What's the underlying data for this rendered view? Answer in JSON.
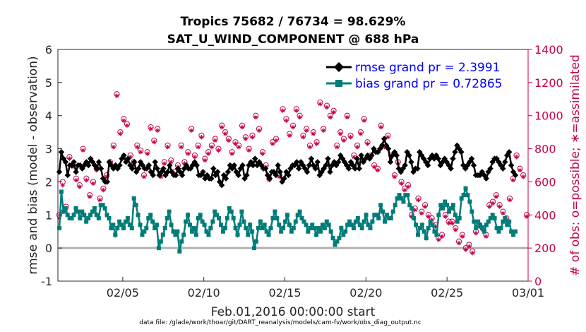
{
  "chart_data": {
    "type": "line",
    "title": "Tropics 75682 / 76734 = 98.629%",
    "subtitle": "SAT_U_WIND_COMPONENT @ 688 hPa",
    "xlabel": "Feb.01,2016 00:00:00 start",
    "ylabel": "rmse and bias (model - observation)",
    "ylabel_right": "# of obs: o=possible; ∗=assimilated",
    "footnote": "data file: /glade/work/thoar/git/DART_reanalysis/models/cam-fv/work/obs_diag_output.nc",
    "x_ticks": [
      "02/05",
      "02/10",
      "02/15",
      "02/20",
      "02/25",
      "03/01"
    ],
    "y_ticks": [
      "-1",
      "0",
      "1",
      "2",
      "3",
      "4",
      "5",
      "6"
    ],
    "y2_ticks": [
      "0",
      "200",
      "400",
      "600",
      "800",
      "1000",
      "1200",
      "1400"
    ],
    "ylim": [
      -1,
      6
    ],
    "y2lim": [
      0,
      1400
    ],
    "xlim": [
      "02/01",
      "03/01"
    ],
    "grid": false,
    "legend_position": "top-right",
    "series": [
      {
        "name": "rmse grand pr = 2.3991",
        "color": "#000000",
        "marker": "diamond",
        "values": [
          2.3,
          2.9,
          2.7,
          2.6,
          2.2,
          2.5,
          2.5,
          2.6,
          2.3,
          2.5,
          2.5,
          2.4,
          2.5,
          2.6,
          2.5,
          2.7,
          2.6,
          2.5,
          2.4,
          2.6,
          2.4,
          2.1,
          2.0,
          2.0,
          2.6,
          2.5,
          2.4,
          2.5,
          2.4,
          2.5,
          2.7,
          2.8,
          2.6,
          2.7,
          2.5,
          2.4,
          2.6,
          2.3,
          2.4,
          2.6,
          2.5,
          2.4,
          2.4,
          2.5,
          2.3,
          2.2,
          2.6,
          2.4,
          2.2,
          2.3,
          2.4,
          2.2,
          2.3,
          2.5,
          2.3,
          2.2,
          2.2,
          2.4,
          2.3,
          2.2,
          2.4,
          2.5,
          2.4,
          2.4,
          2.5,
          2.6,
          2.5,
          2.2,
          2.2,
          2.3,
          2.1,
          2.2,
          2.1,
          2.1,
          2.4,
          2.2,
          2.3,
          2.0,
          1.9,
          2.2,
          2.1,
          2.3,
          2.5,
          2.4,
          2.5,
          2.3,
          2.2,
          2.4,
          2.5,
          2.1,
          2.2,
          2.5,
          2.6,
          2.5,
          2.7,
          2.5,
          2.6,
          2.5,
          2.4,
          2.4,
          2.2,
          2.1,
          2.3,
          2.3,
          2.2,
          2.5,
          2.3,
          2.0,
          2.1,
          2.3,
          2.2,
          2.4,
          2.5,
          2.5,
          2.6,
          2.4,
          2.6,
          2.5,
          2.4,
          2.3,
          2.5,
          2.7,
          2.5,
          2.4,
          2.6,
          2.2,
          2.3,
          2.4,
          2.5,
          2.7,
          2.3,
          2.5,
          2.6,
          2.5,
          2.6,
          2.8,
          2.7,
          2.6,
          2.5,
          2.4,
          2.6,
          2.5,
          2.4,
          2.7,
          2.4,
          2.8,
          2.6,
          2.7,
          2.8,
          2.7,
          2.8,
          3.0,
          2.9,
          2.9,
          3.0,
          3.1,
          3.3,
          3.1,
          3.0,
          2.6,
          2.8,
          2.9,
          2.8,
          2.4,
          2.3,
          2.4,
          2.5,
          2.9,
          2.8,
          2.6,
          2.3,
          2.4,
          2.4,
          2.9,
          2.8,
          2.7,
          2.6,
          2.5,
          2.7,
          2.8,
          2.7,
          2.8,
          2.7,
          2.5,
          2.6,
          2.7,
          2.6,
          2.5,
          2.4,
          2.7,
          2.9,
          3.1,
          3.0,
          2.9,
          2.5,
          2.4,
          2.5,
          2.6,
          2.7,
          2.5,
          2.2,
          2.2,
          2.2,
          2.3,
          2.2,
          2.1,
          2.3,
          2.4,
          2.6,
          2.7,
          2.7,
          2.6,
          2.5,
          2.4,
          2.6,
          2.8,
          2.9,
          2.5,
          2.3,
          2.2
        ]
      },
      {
        "name": "bias grand pr = 0.72865",
        "color": "#007c78",
        "marker": "square",
        "values": [
          0.6,
          1.7,
          1.1,
          1.2,
          1.0,
          0.9,
          0.9,
          1.0,
          1.2,
          1.1,
          0.9,
          1.1,
          1.0,
          0.8,
          0.9,
          1.0,
          1.1,
          1.2,
          1.0,
          0.9,
          1.3,
          1.3,
          1.2,
          1.0,
          0.9,
          0.6,
          0.7,
          0.4,
          0.6,
          0.8,
          0.7,
          0.6,
          0.8,
          0.9,
          0.7,
          0.6,
          1.5,
          1.3,
          1.0,
          0.7,
          0.4,
          0.5,
          0.6,
          0.9,
          1.0,
          0.8,
          0.6,
          0.7,
          0.0,
          0.2,
          0.4,
          0.6,
          0.9,
          1.1,
          0.7,
          0.5,
          0.4,
          0.5,
          -0.1,
          0.2,
          0.4,
          0.8,
          1.0,
          0.7,
          0.5,
          0.6,
          0.4,
          0.9,
          1.0,
          0.8,
          0.7,
          0.5,
          0.4,
          0.6,
          0.8,
          1.1,
          1.0,
          0.9,
          0.7,
          0.5,
          0.6,
          0.9,
          1.2,
          1.1,
          0.9,
          0.6,
          0.4,
          0.7,
          1.1,
          0.8,
          0.6,
          0.4,
          0.7,
          0.5,
          0.0,
          0.2,
          0.6,
          0.8,
          0.6,
          0.7,
          0.5,
          0.4,
          0.6,
          0.9,
          1.1,
          0.9,
          0.7,
          0.5,
          0.6,
          0.8,
          1.0,
          0.7,
          0.5,
          0.6,
          0.8,
          1.0,
          1.1,
          0.9,
          0.8,
          0.7,
          0.5,
          0.6,
          0.7,
          0.6,
          0.4,
          0.6,
          0.5,
          0.7,
          0.6,
          0.8,
          0.7,
          0.5,
          0.3,
          0.1,
          0.2,
          0.3,
          0.6,
          0.4,
          0.5,
          0.7,
          0.8,
          0.7,
          0.6,
          0.8,
          0.9,
          0.7,
          0.6,
          0.8,
          1.0,
          0.7,
          0.6,
          0.8,
          1.0,
          1.0,
          0.9,
          1.3,
          1.1,
          0.8,
          1.0,
          0.9,
          0.9,
          1.1,
          1.3,
          1.5,
          1.6,
          1.5,
          1.4,
          1.6,
          1.6,
          1.3,
          1.2,
          0.9,
          0.7,
          0.4,
          0.6,
          0.7,
          0.5,
          0.3,
          0.6,
          0.8,
          0.7,
          0.5,
          0.4,
          1.0,
          1.3,
          1.2,
          1.4,
          1.3,
          1.1,
          1.2,
          1.3,
          1.0,
          0.8,
          0.9,
          1.5,
          1.6,
          1.8,
          1.6,
          1.4,
          1.1,
          0.8,
          0.6,
          0.8,
          0.7,
          0.6,
          0.5,
          0.7,
          0.8,
          0.9,
          1.0,
          0.9,
          0.6,
          0.5,
          0.6,
          0.8,
          0.9,
          0.7,
          0.8,
          0.5,
          0.4,
          0.5
        ]
      },
      {
        "name": "obs possible",
        "color": "#c8004b",
        "marker": "circle",
        "values": [
          400,
          600,
          450,
          750,
          700,
          620,
          580,
          800,
          620,
          520,
          600,
          680,
          500,
          560,
          640,
          720,
          820,
          1130,
          900,
          980,
          950,
          760,
          720,
          820,
          790,
          640,
          780,
          930,
          850,
          920,
          640,
          720,
          820,
          730,
          660,
          700,
          820,
          720,
          780,
          920,
          760,
          820,
          880,
          740,
          780,
          820,
          860,
          800,
          940,
          900,
          860,
          780,
          840,
          820,
          940,
          870,
          800,
          880,
          1000,
          920,
          780,
          700,
          620,
          840,
          860,
          640,
          1040,
          980,
          890,
          940,
          1040,
          1000,
          880,
          920,
          820,
          900,
          840,
          1080,
          920,
          1060,
          1000,
          1030,
          820,
          900,
          860,
          1000,
          880,
          760,
          820,
          900,
          980,
          840,
          760,
          700,
          680,
          940,
          820,
          880,
          760,
          640,
          720,
          600,
          560,
          580,
          400,
          440,
          500,
          420,
          460,
          400,
          380,
          340,
          260,
          280,
          400,
          360,
          360,
          320,
          240,
          280,
          200,
          220,
          180,
          300,
          340,
          320,
          280,
          460,
          480,
          520,
          460,
          420,
          380,
          500,
          620,
          760,
          680,
          640,
          400
        ]
      },
      {
        "name": "obs assimilated",
        "color": "#c8004b",
        "marker": "asterisk",
        "values": [
          380,
          580,
          440,
          740,
          690,
          610,
          570,
          790,
          610,
          510,
          590,
          670,
          490,
          550,
          630,
          710,
          810,
          1120,
          890,
          970,
          940,
          750,
          710,
          810,
          780,
          630,
          770,
          920,
          840,
          910,
          630,
          710,
          810,
          720,
          650,
          690,
          810,
          710,
          770,
          910,
          750,
          810,
          870,
          730,
          770,
          810,
          850,
          790,
          930,
          890,
          850,
          770,
          830,
          810,
          930,
          860,
          790,
          870,
          990,
          910,
          770,
          690,
          610,
          830,
          850,
          630,
          1030,
          970,
          880,
          930,
          1030,
          990,
          870,
          910,
          810,
          890,
          830,
          1070,
          910,
          1050,
          990,
          1020,
          810,
          890,
          850,
          990,
          870,
          750,
          810,
          890,
          970,
          830,
          750,
          690,
          670,
          930,
          810,
          870,
          750,
          630,
          710,
          590,
          550,
          570,
          390,
          430,
          490,
          410,
          450,
          390,
          370,
          330,
          250,
          270,
          390,
          350,
          350,
          310,
          230,
          270,
          190,
          210,
          170,
          290,
          330,
          310,
          270,
          450,
          470,
          510,
          450,
          410,
          370,
          490,
          610,
          750,
          670,
          630,
          390
        ]
      }
    ]
  }
}
